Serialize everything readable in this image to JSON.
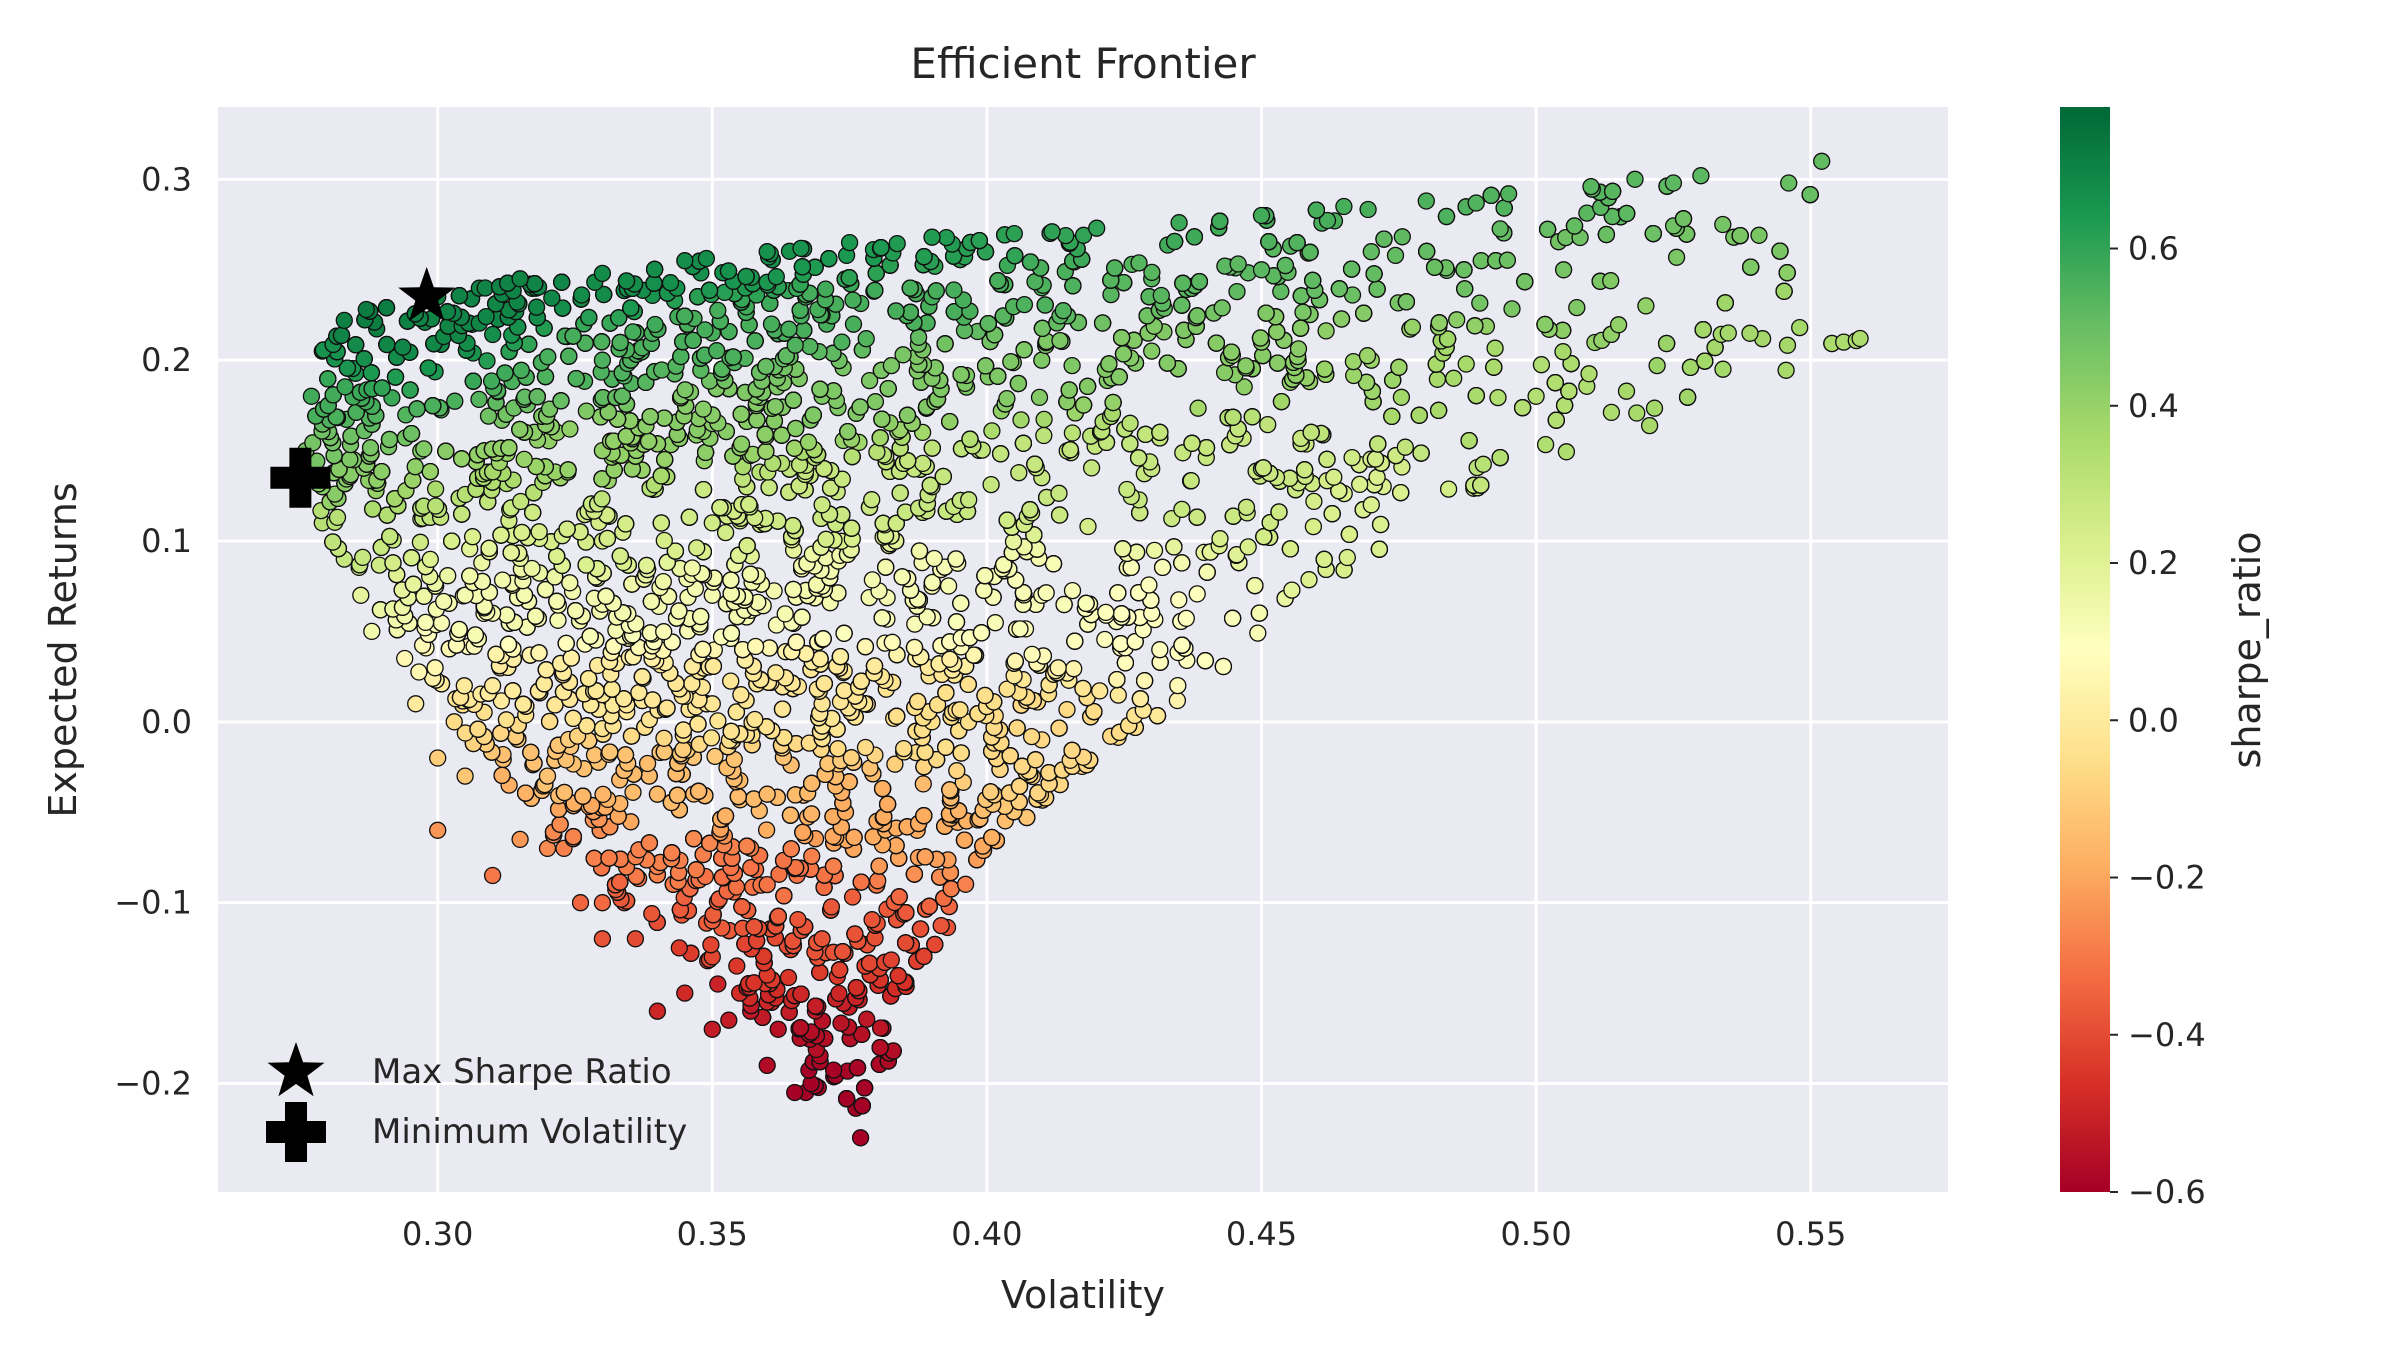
{
  "chart_data": {
    "type": "scatter",
    "title": "Efficient Frontier",
    "xlabel": "Volatility",
    "ylabel": "Expected Returns",
    "xlim": [
      0.26,
      0.575
    ],
    "ylim": [
      -0.26,
      0.34
    ],
    "x_ticks": [
      0.3,
      0.35,
      0.4,
      0.45,
      0.5,
      0.55
    ],
    "x_tick_labels": [
      "0.30",
      "0.35",
      "0.40",
      "0.45",
      "0.50",
      "0.55"
    ],
    "y_ticks": [
      -0.2,
      -0.1,
      0.0,
      0.1,
      0.2,
      0.3
    ],
    "y_tick_labels": [
      "−0.2",
      "−0.1",
      "0.0",
      "0.1",
      "0.2",
      "0.3"
    ],
    "grid": true,
    "colormap": "RdYlGn",
    "colorbar": {
      "label": "sharpe_ratio",
      "range": [
        -0.6,
        0.78
      ],
      "ticks": [
        -0.6,
        -0.4,
        -0.2,
        0.0,
        0.2,
        0.4,
        0.6
      ],
      "tick_labels": [
        "−0.6",
        "−0.4",
        "−0.2",
        "0.0",
        "0.2",
        "0.4",
        "0.6"
      ]
    },
    "series": [
      {
        "name": "Max Sharpe Ratio",
        "marker": "star",
        "color": "#000000",
        "x": [
          0.298
        ],
        "y": [
          0.235
        ]
      },
      {
        "name": "Minimum Volatility",
        "marker": "plus",
        "color": "#000000",
        "x": [
          0.275
        ],
        "y": [
          0.135
        ]
      }
    ],
    "legend_position": "lower-left",
    "portfolios": {
      "x": [
        0.287,
        0.283,
        0.279,
        0.277,
        0.276,
        0.279,
        0.286,
        0.294,
        0.303,
        0.313,
        0.323,
        0.334,
        0.344,
        0.351,
        0.357,
        0.362,
        0.366,
        0.368,
        0.377,
        0.367,
        0.365,
        0.36,
        0.353,
        0.345,
        0.336,
        0.326,
        0.315,
        0.305,
        0.296,
        0.288,
        0.283,
        0.279,
        0.3,
        0.315,
        0.33,
        0.345,
        0.36,
        0.375,
        0.39,
        0.405,
        0.42,
        0.435,
        0.45,
        0.465,
        0.48,
        0.495,
        0.51,
        0.518,
        0.525,
        0.53,
        0.534,
        0.536,
        0.546,
        0.552,
        0.33,
        0.35,
        0.37,
        0.39,
        0.41,
        0.43,
        0.45,
        0.47,
        0.49,
        0.505,
        0.52,
        0.535,
        0.548,
        0.556,
        0.559,
        0.33,
        0.35,
        0.37,
        0.39,
        0.41,
        0.43,
        0.45,
        0.47,
        0.485,
        0.5,
        0.33,
        0.35,
        0.37,
        0.39,
        0.41,
        0.43,
        0.45,
        0.47,
        0.31,
        0.33,
        0.35,
        0.37,
        0.39,
        0.41,
        0.43,
        0.31,
        0.33,
        0.35,
        0.37,
        0.39,
        0.41,
        0.3,
        0.32,
        0.34,
        0.36,
        0.38,
        0.3,
        0.32,
        0.34,
        0.36,
        0.31,
        0.33,
        0.35,
        0.37,
        0.33,
        0.35,
        0.36,
        0.34,
        0.355,
        0.36,
        0.35
      ],
      "y": [
        0.228,
        0.222,
        0.205,
        0.18,
        0.15,
        0.11,
        0.07,
        0.035,
        0.0,
        -0.035,
        -0.07,
        -0.1,
        -0.125,
        -0.145,
        -0.16,
        -0.17,
        -0.175,
        -0.2,
        -0.23,
        -0.205,
        -0.205,
        -0.19,
        -0.165,
        -0.15,
        -0.12,
        -0.1,
        -0.065,
        -0.03,
        0.01,
        0.05,
        0.09,
        0.13,
        0.235,
        0.245,
        0.248,
        0.255,
        0.26,
        0.265,
        0.268,
        0.27,
        0.273,
        0.276,
        0.28,
        0.285,
        0.288,
        0.292,
        0.296,
        0.3,
        0.298,
        0.302,
        0.275,
        0.268,
        0.298,
        0.31,
        0.2,
        0.215,
        0.225,
        0.235,
        0.24,
        0.245,
        0.25,
        0.26,
        0.255,
        0.25,
        0.23,
        0.215,
        0.218,
        0.21,
        0.212,
        0.15,
        0.165,
        0.18,
        0.19,
        0.2,
        0.205,
        0.21,
        0.2,
        0.19,
        0.18,
        0.1,
        0.11,
        0.12,
        0.13,
        0.135,
        0.14,
        0.14,
        0.12,
        0.06,
        0.065,
        0.07,
        0.075,
        0.075,
        0.07,
        0.06,
        0.02,
        0.015,
        0.01,
        0.01,
        0.0,
        -0.01,
        -0.02,
        -0.03,
        -0.04,
        -0.04,
        -0.055,
        -0.06,
        -0.07,
        -0.08,
        -0.09,
        -0.085,
        -0.1,
        -0.11,
        -0.12,
        -0.12,
        -0.13,
        -0.14,
        -0.16,
        -0.15,
        -0.155,
        -0.17
      ],
      "sharpe_ratio": [
        0.72,
        0.71,
        0.66,
        0.57,
        0.47,
        0.32,
        0.18,
        0.06,
        -0.06,
        -0.18,
        -0.28,
        -0.37,
        -0.44,
        -0.5,
        -0.53,
        -0.55,
        -0.56,
        -0.6,
        -0.65,
        -0.6,
        -0.6,
        -0.57,
        -0.52,
        -0.48,
        -0.4,
        -0.34,
        -0.23,
        -0.12,
        0.0,
        0.14,
        0.28,
        0.43,
        0.7,
        0.7,
        0.68,
        0.67,
        0.66,
        0.64,
        0.63,
        0.61,
        0.6,
        0.58,
        0.57,
        0.56,
        0.55,
        0.54,
        0.53,
        0.53,
        0.52,
        0.52,
        0.47,
        0.46,
        0.5,
        0.51,
        0.55,
        0.56,
        0.56,
        0.56,
        0.55,
        0.53,
        0.52,
        0.51,
        0.49,
        0.47,
        0.41,
        0.37,
        0.37,
        0.35,
        0.35,
        0.41,
        0.43,
        0.45,
        0.45,
        0.45,
        0.44,
        0.43,
        0.39,
        0.36,
        0.33,
        0.24,
        0.25,
        0.27,
        0.28,
        0.28,
        0.28,
        0.27,
        0.22,
        0.13,
        0.13,
        0.13,
        0.13,
        0.12,
        0.11,
        0.09,
        0.0,
        -0.01,
        -0.02,
        -0.02,
        -0.05,
        -0.07,
        -0.1,
        -0.13,
        -0.15,
        -0.15,
        -0.19,
        -0.24,
        -0.26,
        -0.28,
        -0.31,
        -0.3,
        -0.33,
        -0.36,
        -0.38,
        -0.38,
        -0.41,
        -0.44,
        -0.49,
        -0.47,
        -0.49,
        -0.52
      ]
    }
  }
}
